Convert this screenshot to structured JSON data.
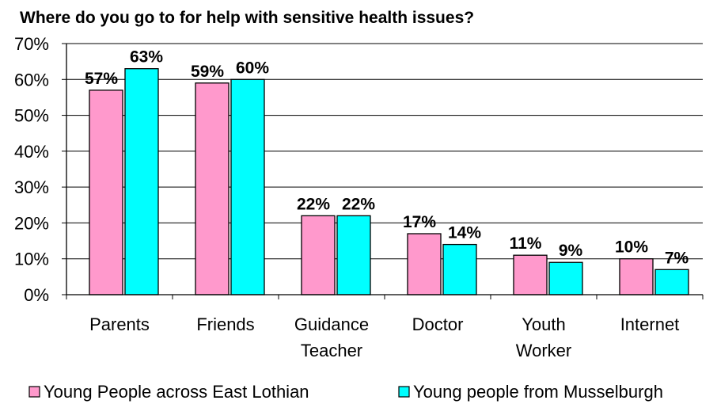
{
  "chart_data": {
    "type": "bar",
    "title": "Where do you go to for help with sensitive health issues?",
    "xlabel": "",
    "ylabel": "",
    "ylim": [
      0,
      70
    ],
    "y_ticks": [
      "0%",
      "10%",
      "20%",
      "30%",
      "40%",
      "50%",
      "60%",
      "70%"
    ],
    "grid": true,
    "legend_position": "bottom",
    "categories": [
      [
        "Parents"
      ],
      [
        "Friends"
      ],
      [
        "Guidance",
        "Teacher"
      ],
      [
        "Doctor"
      ],
      [
        "Youth",
        "Worker"
      ],
      [
        "Internet"
      ]
    ],
    "series": [
      {
        "name": "Young People across East Lothian",
        "color": "#ff99cc",
        "values": [
          57,
          59,
          22,
          17,
          11,
          10
        ],
        "labels": [
          "57%",
          "59%",
          "22%",
          "17%",
          "11%",
          "10%"
        ]
      },
      {
        "name": "Young people from Musselburgh",
        "color": "#00ffff",
        "values": [
          63,
          60,
          22,
          14,
          9,
          7
        ],
        "labels": [
          "63%",
          "60%",
          "22%",
          "14%",
          "9%",
          "7%"
        ]
      }
    ]
  }
}
